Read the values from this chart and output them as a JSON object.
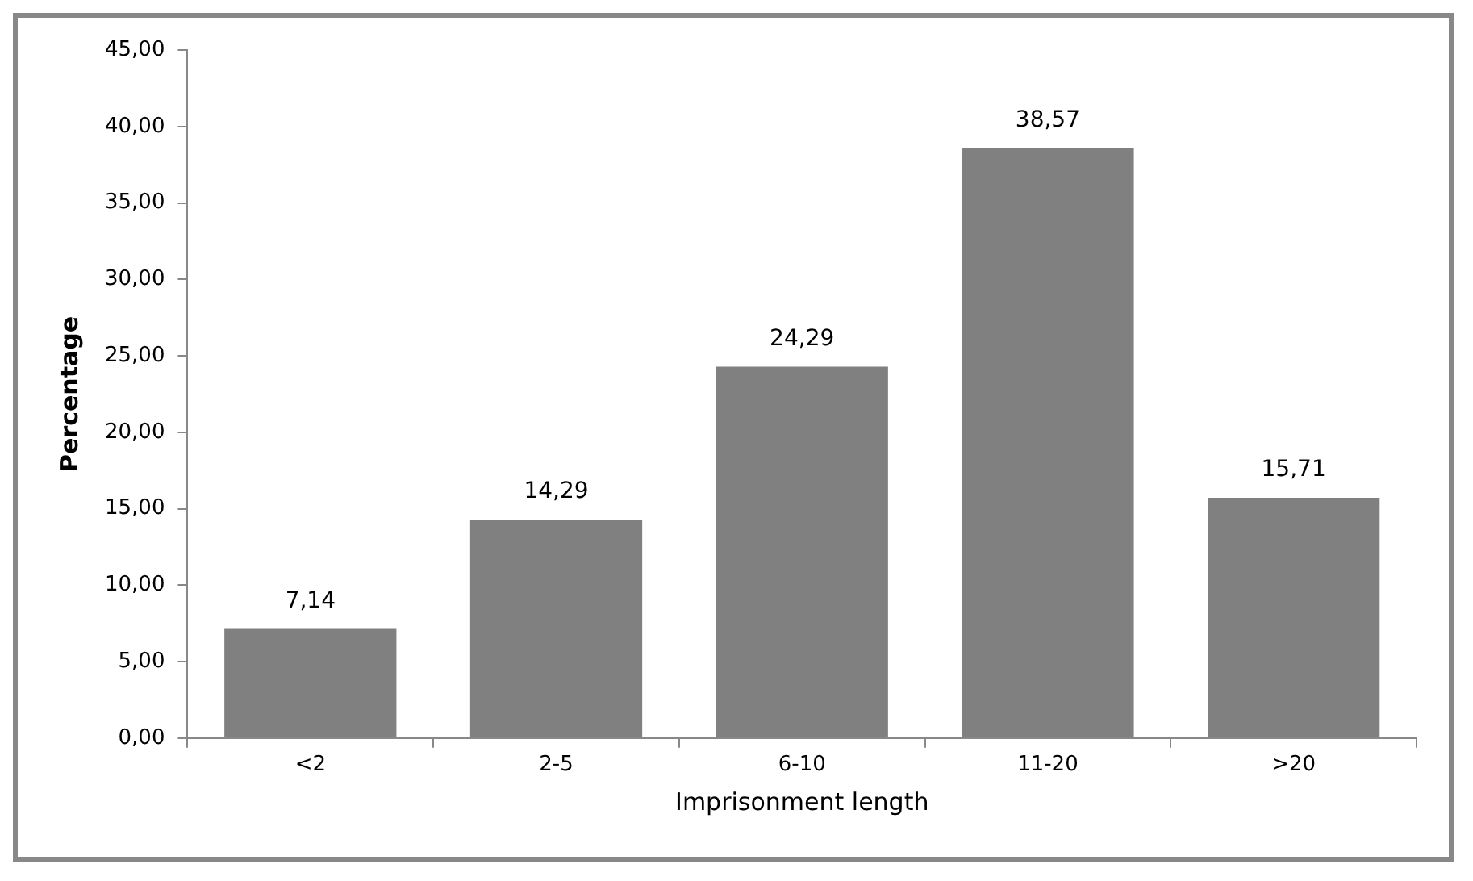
{
  "chart_data": {
    "type": "bar",
    "xlabel": "Imprisonment length",
    "ylabel": "Percentage",
    "categories": [
      "<2",
      "2-5",
      "6-10",
      "11-20",
      ">20"
    ],
    "values": [
      7.14,
      14.29,
      24.29,
      38.57,
      15.71
    ],
    "value_labels": [
      "7,14",
      "14,29",
      "24,29",
      "38,57",
      "15,71"
    ],
    "color": "#808080",
    "ylim": [
      0,
      45
    ],
    "yticks": [
      {
        "value": 0,
        "label": "0,00"
      },
      {
        "value": 5,
        "label": "5,00"
      },
      {
        "value": 10,
        "label": "10,00"
      },
      {
        "value": 15,
        "label": "15,00"
      },
      {
        "value": 20,
        "label": "20,00"
      },
      {
        "value": 25,
        "label": "25,00"
      },
      {
        "value": 30,
        "label": "30,00"
      },
      {
        "value": 35,
        "label": "35,00"
      },
      {
        "value": 40,
        "label": "40,00"
      },
      {
        "value": 45,
        "label": "45,00"
      }
    ],
    "grid": false,
    "legend": false
  }
}
